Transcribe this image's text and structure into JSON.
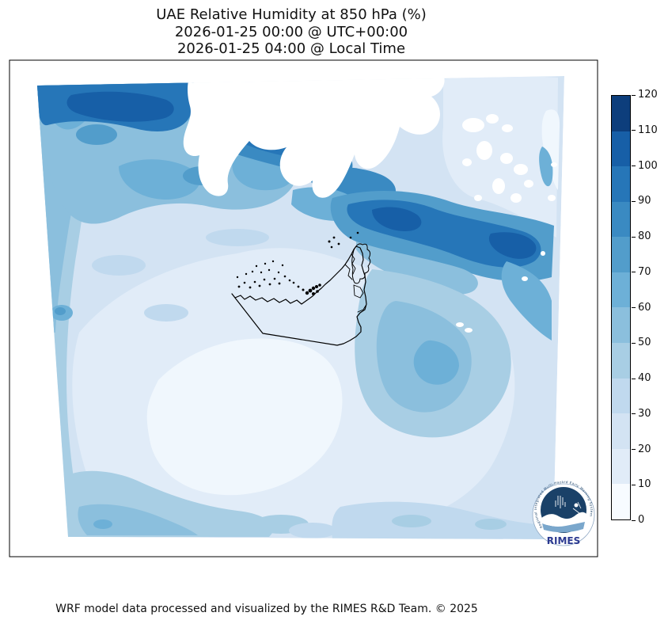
{
  "title": {
    "line1": "UAE Relative Humidity at 850 hPa (%)",
    "line2": "2026-01-25 00:00 @ UTC+00:00",
    "line3": "2026-01-25 04:00 @ Local Time"
  },
  "footer": {
    "credit": "WRF model data processed and visualized by the RIMES R&D Team. © 2025"
  },
  "logo": {
    "text": "RIMES",
    "ring_text": "Regional Integrated Multi-Hazard Early Warning System",
    "disc_color": "#1a4168",
    "text_color": "#2b3990"
  },
  "colorbar": {
    "min": 0,
    "max": 120,
    "step": 10,
    "ticks": [
      0,
      10,
      20,
      30,
      40,
      50,
      60,
      70,
      80,
      90,
      100,
      110,
      120
    ],
    "colors": [
      "#f7fbff",
      "#e1ecf8",
      "#d3e3f3",
      "#c0d9ee",
      "#a8cee4",
      "#8bbfdd",
      "#6db0d7",
      "#529dcb",
      "#3a8ac2",
      "#2676b8",
      "#175fa7",
      "#0d3e7c"
    ]
  },
  "palette": {
    "masked_no_data": "#ffffff",
    "coastline_outline": "#000000",
    "frame": "#000000"
  },
  "chart_data": {
    "type": "heatmap",
    "subtype": "filled_contour_map",
    "title": "UAE Relative Humidity at 850 hPa (%)",
    "valid_time_utc": "2026-01-25 00:00 @ UTC+00:00",
    "valid_time_local": "2026-01-25 04:00 @ Local Time",
    "variable": "Relative Humidity",
    "pressure_level_hPa": 850,
    "units": "%",
    "levels": [
      0,
      10,
      20,
      30,
      40,
      50,
      60,
      70,
      80,
      90,
      100,
      110,
      120
    ],
    "colormap": "Blues (12 discrete bins)",
    "colorbar_range": [
      0,
      120
    ],
    "legend_position": "right vertical colorbar",
    "grid": false,
    "overlays": [
      "UAE national border and coastline in black",
      "coastal island dots",
      "RIMES logo bottom-right"
    ],
    "masked_areas_note": "White irregular patches across the north-center and northeast of the domain are masked (no data, terrain above 850 hPa)",
    "regions": [
      {
        "area": "northwest / top-left (Persian Gulf)",
        "rh_percent": "60-110, darkest band 90-110 along top edge"
      },
      {
        "area": "north-center (Iran highlands)",
        "rh_percent": "masked (white)"
      },
      {
        "area": "east-central band (Strait of Hormuz / Gulf of Oman)",
        "rh_percent": "80-110"
      },
      {
        "area": "UAE and central desert interior",
        "rh_percent": "0-30"
      },
      {
        "area": "south and southwest of domain",
        "rh_percent": "10-30"
      },
      {
        "area": "southeast (Oman coast)",
        "rh_percent": "30-70"
      },
      {
        "area": "bottom-left edge",
        "rh_percent": "40-70"
      }
    ]
  }
}
